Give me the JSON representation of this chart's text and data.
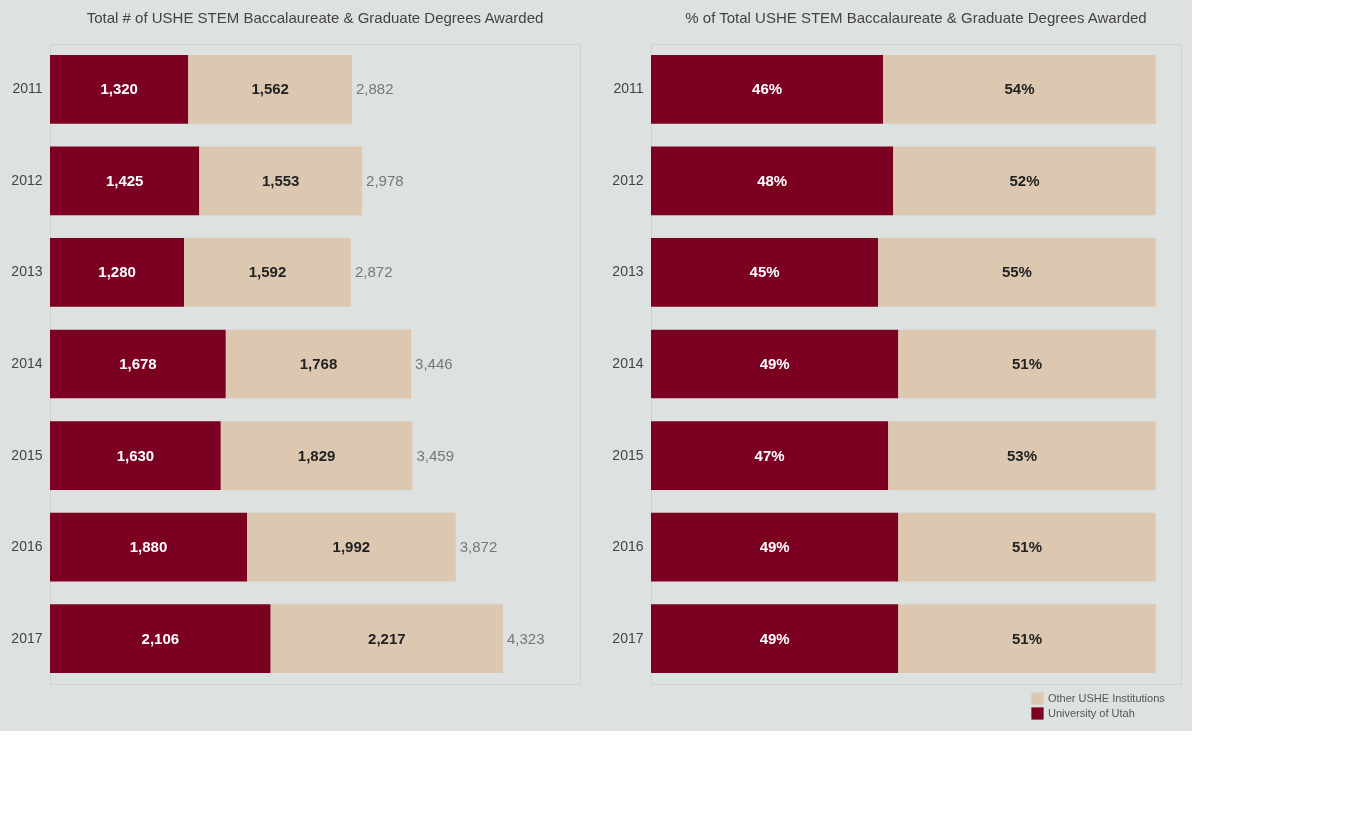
{
  "chart_data": [
    {
      "type": "bar",
      "orientation": "horizontal",
      "stacked": true,
      "title": "Total # of USHE STEM Baccalaureate & Graduate Degrees Awarded",
      "categories": [
        "2011",
        "2012",
        "2013",
        "2014",
        "2015",
        "2016",
        "2017"
      ],
      "series": [
        {
          "color": "#7b0021",
          "values": [
            1320,
            1425,
            1280,
            1678,
            1630,
            1880,
            2106
          ],
          "value_labels": [
            "1,320",
            "1,425",
            "1,280",
            "1,678",
            "1,630",
            "1,880",
            "2,106"
          ]
        },
        {
          "color": "#dcc8b0",
          "values": [
            1562,
            1553,
            1592,
            1768,
            1829,
            1992,
            2217
          ],
          "value_labels": [
            "1,562",
            "1,553",
            "1,592",
            "1,768",
            "1,829",
            "1,992",
            "2,217"
          ]
        }
      ],
      "totals": [
        "2,882",
        "2,978",
        "2,872",
        "3,446",
        "3,459",
        "3,872",
        "4,323"
      ],
      "tick_labels": "y"
    },
    {
      "type": "bar",
      "orientation": "horizontal",
      "stacked": true,
      "title": "% of Total USHE STEM Baccalaureate & Graduate Degrees Awarded",
      "categories": [
        "2011",
        "2012",
        "2013",
        "2014",
        "2015",
        "2016",
        "2017"
      ],
      "series": [
        {
          "name": "University of Utah",
          "color": "#7b0021",
          "values": [
            46,
            48,
            45,
            49,
            47,
            49,
            49
          ],
          "value_labels": [
            "46%",
            "48%",
            "45%",
            "49%",
            "47%",
            "49%",
            "49%"
          ]
        },
        {
          "name": "Other USHE Institutions",
          "color": "#dcc8b0",
          "values": [
            54,
            52,
            55,
            51,
            53,
            51,
            51
          ],
          "value_labels": [
            "54%",
            "52%",
            "55%",
            "51%",
            "53%",
            "51%",
            "51%"
          ]
        }
      ],
      "tick_labels": "y",
      "legend": "bottom right"
    }
  ]
}
